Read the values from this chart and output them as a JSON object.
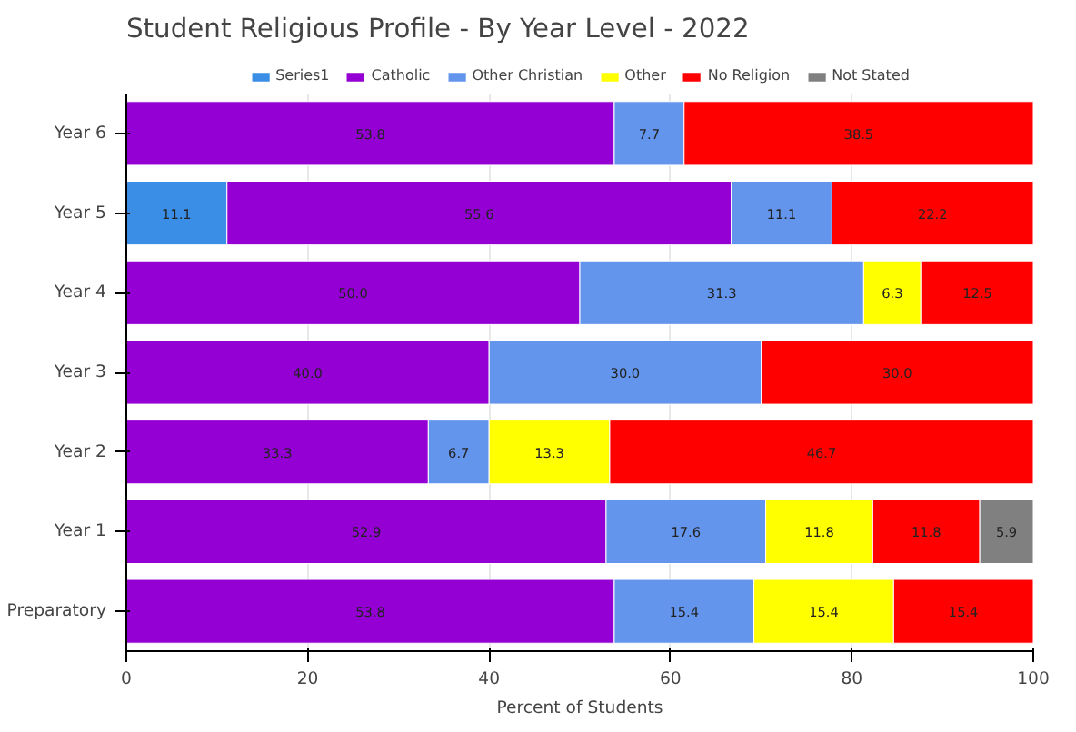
{
  "chart_data": {
    "type": "bar",
    "orientation": "horizontal",
    "stacked": true,
    "title": "Student Religious Profile - By Year Level - 2022",
    "xlabel": "Percent of Students",
    "categories": [
      "Year 6",
      "Year 5",
      "Year 4",
      "Year 3",
      "Year 2",
      "Year 1",
      "Preparatory"
    ],
    "series": [
      {
        "name": "Series1",
        "color": "#3a8ee6",
        "values": [
          null,
          11.1,
          null,
          null,
          null,
          null,
          null
        ],
        "value_labels": [
          null,
          "11.1",
          null,
          null,
          null,
          null,
          null
        ]
      },
      {
        "name": "Catholic",
        "color": "#9400d3",
        "values": [
          53.8,
          55.6,
          50.0,
          40.0,
          33.3,
          52.9,
          53.8
        ],
        "value_labels": [
          "53.8",
          "55.6",
          "50.0",
          "40.0",
          "33.3",
          "52.9",
          "53.8"
        ]
      },
      {
        "name": "Other Christian",
        "color": "#6495ed",
        "values": [
          7.7,
          11.1,
          31.3,
          30.0,
          6.7,
          17.6,
          15.4
        ],
        "value_labels": [
          "7.7",
          "11.1",
          "31.3",
          "30.0",
          "6.7",
          "17.6",
          "15.4"
        ]
      },
      {
        "name": "Other",
        "color": "#ffff00",
        "values": [
          null,
          null,
          6.3,
          null,
          13.3,
          11.8,
          15.4
        ],
        "value_labels": [
          null,
          null,
          "6.3",
          null,
          "13.3",
          "11.8",
          "15.4"
        ]
      },
      {
        "name": "No Religion",
        "color": "#ff0000",
        "values": [
          38.5,
          22.2,
          12.5,
          30.0,
          46.7,
          11.8,
          15.4
        ],
        "value_labels": [
          "38.5",
          "22.2",
          "12.5",
          "30.0",
          "46.7",
          "11.8",
          "15.4"
        ]
      },
      {
        "name": "Not Stated",
        "color": "#808080",
        "values": [
          null,
          null,
          null,
          null,
          null,
          5.9,
          null
        ],
        "value_labels": [
          null,
          null,
          null,
          null,
          null,
          "5.9",
          null
        ]
      }
    ],
    "xlim": [
      0,
      100
    ],
    "xticks": [
      0,
      20,
      40,
      60,
      80,
      100
    ],
    "grid": "x",
    "legend": "top",
    "data_labels": true
  }
}
